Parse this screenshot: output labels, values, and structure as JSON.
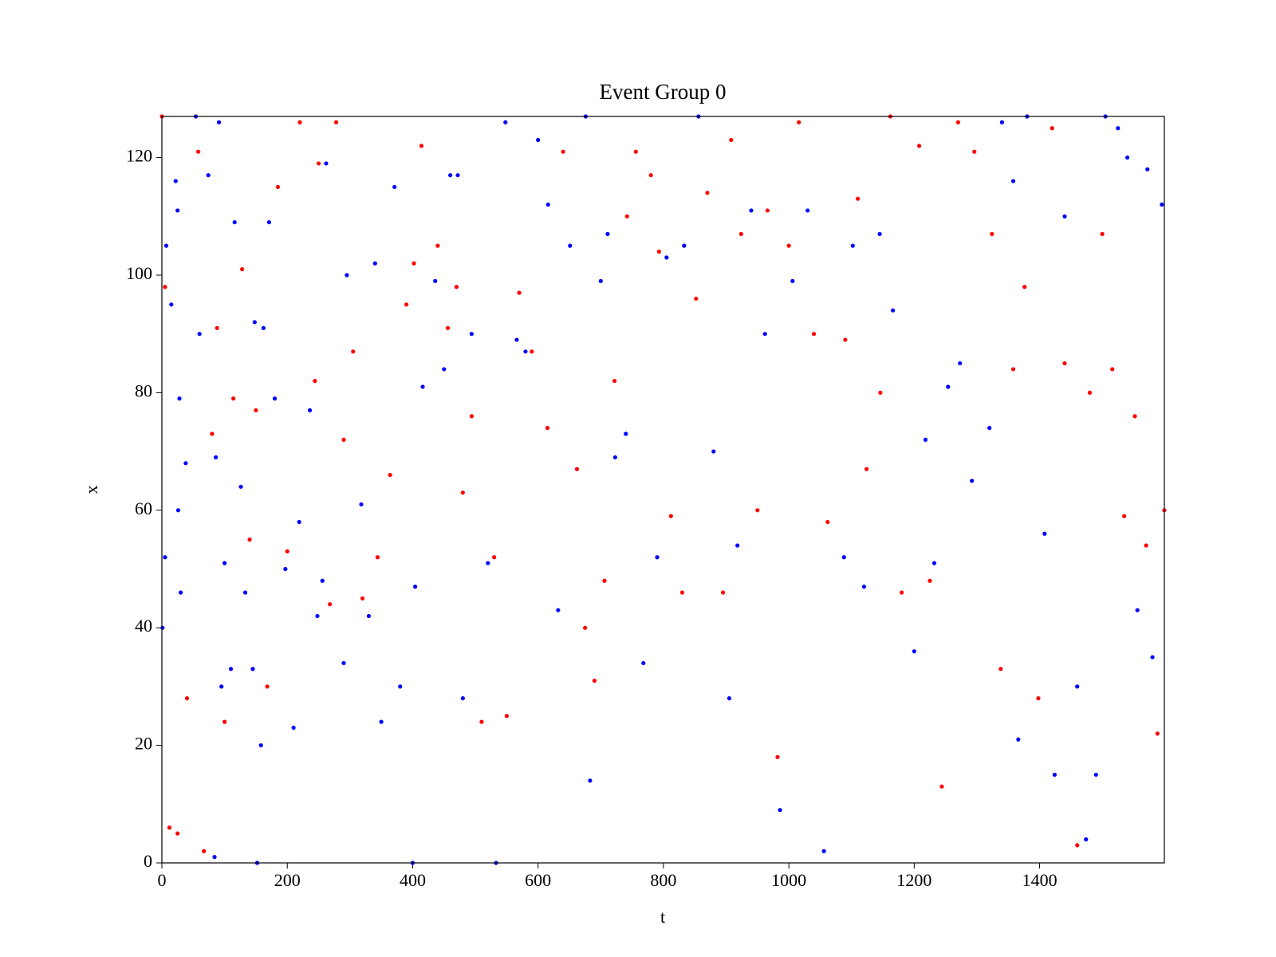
{
  "chart_data": {
    "type": "scatter",
    "title": "Event Group 0",
    "x_label": "t",
    "y_label": "x",
    "xlim": [
      0,
      1599
    ],
    "ylim": [
      0,
      127
    ],
    "xticks": [
      0,
      200,
      400,
      600,
      800,
      1000,
      1200,
      1400
    ],
    "yticks": [
      0,
      20,
      40,
      60,
      80,
      100,
      120
    ],
    "grid": false,
    "series": [
      {
        "color": "#0000ff",
        "x": [
          1,
          5,
          7,
          15,
          22,
          25,
          28,
          26,
          30,
          38,
          54,
          60,
          74,
          84,
          86,
          91,
          95,
          100,
          110,
          116,
          126,
          133,
          145,
          148,
          152,
          158,
          162,
          171,
          180,
          197,
          210,
          219,
          236,
          248,
          256,
          262,
          290,
          295,
          318,
          330,
          340,
          350,
          371,
          380,
          400,
          404,
          416,
          436,
          450,
          460,
          472,
          480,
          494,
          520,
          533,
          548,
          566,
          580,
          600,
          616,
          632,
          651,
          676,
          683,
          700,
          711,
          723,
          740,
          768,
          790,
          805,
          833,
          856,
          880,
          905,
          918,
          940,
          962,
          986,
          1006,
          1030,
          1056,
          1088,
          1102,
          1120,
          1145,
          1166,
          1200,
          1218,
          1232,
          1254,
          1273,
          1292,
          1320,
          1340,
          1358,
          1366,
          1380,
          1408,
          1424,
          1440,
          1460,
          1474,
          1490,
          1505,
          1525,
          1540,
          1556,
          1572,
          1580,
          1595
        ],
        "values": [
          40,
          52,
          105,
          95,
          116,
          111,
          79,
          60,
          46,
          68,
          127,
          90,
          117,
          1,
          69,
          126,
          30,
          51,
          33,
          109,
          64,
          46,
          33,
          92,
          0,
          20,
          91,
          109,
          79,
          50,
          23,
          58,
          77,
          42,
          48,
          119,
          34,
          100,
          61,
          42,
          102,
          24,
          115,
          30,
          0,
          47,
          81,
          99,
          84,
          117,
          117,
          28,
          90,
          51,
          0,
          126,
          89,
          87,
          123,
          112,
          43,
          105,
          127,
          14,
          99,
          107,
          69,
          73,
          34,
          52,
          103,
          105,
          127,
          70,
          28,
          54,
          111,
          90,
          9,
          99,
          111,
          2,
          52,
          105,
          47,
          107,
          94,
          36,
          72,
          51,
          81,
          85,
          65,
          74,
          126,
          116,
          21,
          127,
          56,
          15,
          110,
          30,
          4,
          15,
          127,
          125,
          120,
          43,
          118,
          35,
          112
        ]
      },
      {
        "color": "#ff0000",
        "x": [
          0,
          5,
          12,
          25,
          40,
          58,
          67,
          80,
          88,
          100,
          114,
          128,
          140,
          150,
          168,
          185,
          200,
          220,
          244,
          250,
          268,
          278,
          290,
          305,
          320,
          344,
          364,
          390,
          402,
          414,
          440,
          456,
          470,
          480,
          494,
          510,
          530,
          550,
          570,
          590,
          615,
          640,
          662,
          675,
          690,
          706,
          722,
          742,
          756,
          780,
          793,
          812,
          830,
          852,
          870,
          895,
          908,
          924,
          950,
          966,
          982,
          1000,
          1016,
          1040,
          1062,
          1090,
          1110,
          1124,
          1146,
          1162,
          1180,
          1208,
          1225,
          1244,
          1270,
          1296,
          1324,
          1338,
          1358,
          1376,
          1398,
          1420,
          1440,
          1460,
          1480,
          1500,
          1516,
          1535,
          1552,
          1570,
          1588,
          1599
        ],
        "values": [
          127,
          98,
          6,
          5,
          28,
          121,
          2,
          73,
          91,
          24,
          79,
          101,
          55,
          77,
          30,
          115,
          53,
          126,
          82,
          119,
          44,
          126,
          72,
          87,
          45,
          52,
          66,
          95,
          102,
          122,
          105,
          91,
          98,
          63,
          76,
          24,
          52,
          25,
          97,
          87,
          74,
          121,
          67,
          40,
          31,
          48,
          82,
          110,
          121,
          117,
          104,
          59,
          46,
          96,
          114,
          46,
          123,
          107,
          60,
          111,
          18,
          105,
          126,
          90,
          58,
          89,
          113,
          67,
          80,
          127,
          46,
          122,
          48,
          13,
          126,
          121,
          107,
          33,
          84,
          98,
          28,
          125,
          85,
          3,
          80,
          107,
          84,
          59,
          76,
          54,
          22,
          60
        ]
      }
    ]
  }
}
